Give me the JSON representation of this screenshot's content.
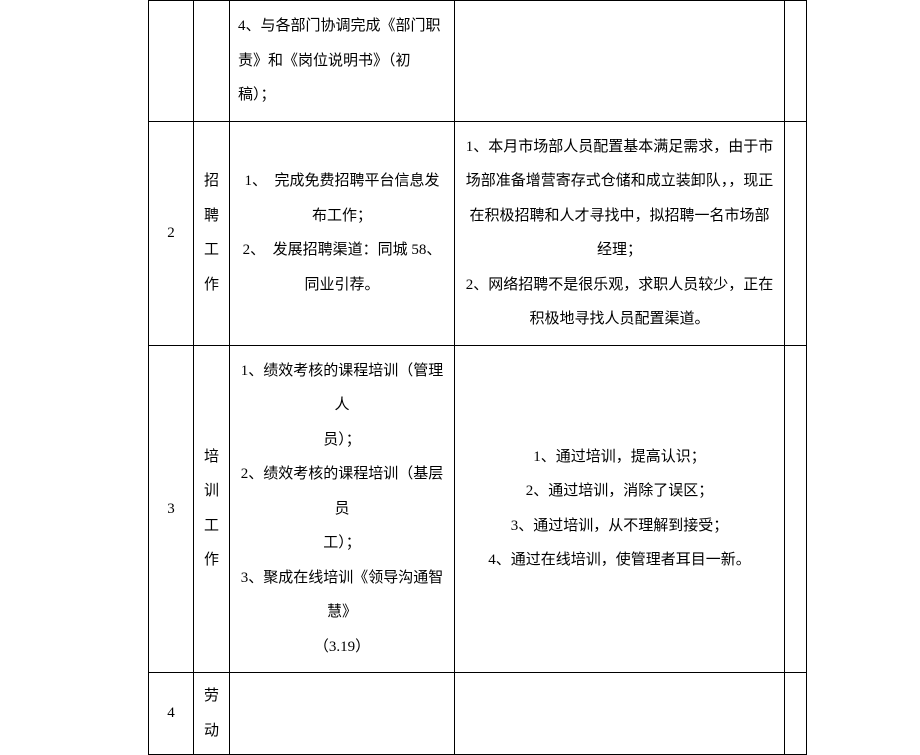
{
  "rows": [
    {
      "idx": "",
      "cat": "",
      "task": "4、与各部门协调完成《部门职责》和《岗位说明书》（初稿）；",
      "note": "",
      "end": ""
    },
    {
      "idx": "2",
      "cat_chars": [
        "招",
        "聘",
        "工",
        "作"
      ],
      "task_lines": [
        "1、　完成免费招聘平台信息发",
        "布工作；",
        "2、　发展招聘渠道：同城 58、",
        "同业引荐。"
      ],
      "note_lines": [
        "1、本月市场部人员配置基本满足需求，由于市",
        "场部准备增营寄存式仓储和成立装卸队，，现正",
        "在积极招聘和人才寻找中，拟招聘一名市场部",
        "经理；",
        "2、网络招聘不是很乐观，求职人员较少，正在",
        "积极地寻找人员配置渠道。"
      ],
      "end": ""
    },
    {
      "idx": "3",
      "cat_chars": [
        "培",
        "训",
        "工",
        "作"
      ],
      "task_lines": [
        "1、绩效考核的课程培训（管理人",
        "员）；",
        "2、绩效考核的课程培训（基层员",
        "工）；",
        "3、聚成在线培训《领导沟通智慧》",
        "（3.19）"
      ],
      "note_lines": [
        "1、通过培训，提高认识；",
        "2、通过培训，消除了误区；",
        "3、通过培训，从不理解到接受；",
        "4、通过在线培训，使管理者耳目一新。"
      ],
      "end": ""
    },
    {
      "idx": "4",
      "cat_chars": [
        "劳",
        "动"
      ],
      "task": "",
      "note": "",
      "end": ""
    }
  ],
  "colors": {
    "border": "#000000",
    "background": "#ffffff",
    "text": "#000000"
  },
  "font": {
    "family": "SimSun",
    "size_pt": 11
  }
}
